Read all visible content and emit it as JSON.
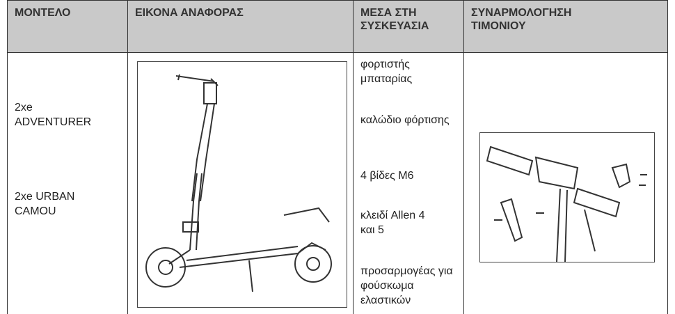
{
  "header": {
    "columns": [
      "ΜΟΝΤΕΛΟ",
      "ΕΙΚΟΝΑ ΑΝΑΦΟΡΑΣ",
      "ΜΕΣΑ ΣΤΗ ΣΥΣΚΕΥΑΣΙΑ",
      "ΣΥΝΑΡΜΟΛΟΓΗΣΗ ΤΙΜΟΝΙΟΥ"
    ]
  },
  "row": {
    "models": [
      "2xe ADVENTURER",
      "2xe URBAN CAMOU"
    ],
    "contents": [
      "φορτιστής μπαταρίας",
      "καλώδιο φόρτισης",
      "4 βίδες M6",
      "κλειδί Allen 4 και 5",
      "προσαρμογέας για φούσκωμα ελαστικών"
    ]
  }
}
